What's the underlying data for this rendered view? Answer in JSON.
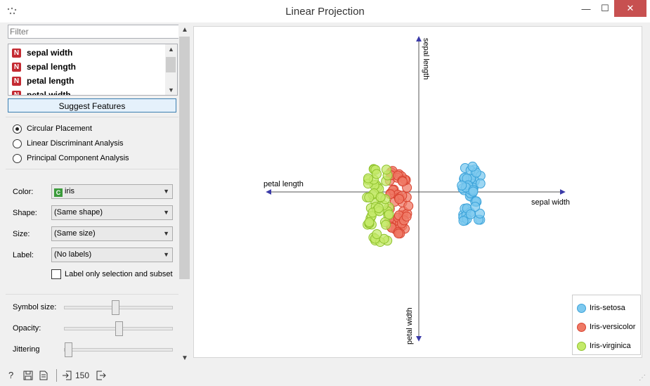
{
  "window": {
    "title": "Linear Projection",
    "minimize": "—",
    "maximize": "☐",
    "close": "✕"
  },
  "filter": {
    "placeholder": "Filter",
    "value": ""
  },
  "features": [
    {
      "type": "N",
      "name": "sepal width"
    },
    {
      "type": "N",
      "name": "sepal length"
    },
    {
      "type": "N",
      "name": "petal length"
    },
    {
      "type": "N",
      "name": "petal width"
    }
  ],
  "suggest_label": "Suggest Features",
  "placement": {
    "options": [
      "Circular Placement",
      "Linear Discriminant Analysis",
      "Principal Component Analysis"
    ],
    "selected": 0
  },
  "attributes": {
    "color": {
      "label": "Color:",
      "value": "iris",
      "badge": "C"
    },
    "shape": {
      "label": "Shape:",
      "value": "(Same shape)"
    },
    "size": {
      "label": "Size:",
      "value": "(Same size)"
    },
    "label": {
      "label": "Label:",
      "value": "(No labels)"
    },
    "label_only": {
      "text": "Label only selection and subset",
      "checked": false
    }
  },
  "sliders": {
    "symbol_size": {
      "label": "Symbol size:",
      "value": 0.46
    },
    "opacity": {
      "label": "Opacity:",
      "value": 0.5
    },
    "jittering": {
      "label": "Jittering",
      "value": 0.0
    }
  },
  "status": {
    "count": "150"
  },
  "plot": {
    "axes": {
      "top": "sepal length",
      "right": "sepal width",
      "left": "petal length",
      "bottom": "petal width"
    }
  },
  "legend": [
    {
      "name": "Iris-setosa",
      "fill": "#7ec9ef",
      "stroke": "#3ba2d9"
    },
    {
      "name": "Iris-versicolor",
      "fill": "#ef7a66",
      "stroke": "#d8412f"
    },
    {
      "name": "Iris-virginica",
      "fill": "#c4ea6a",
      "stroke": "#8fc22d"
    }
  ]
}
